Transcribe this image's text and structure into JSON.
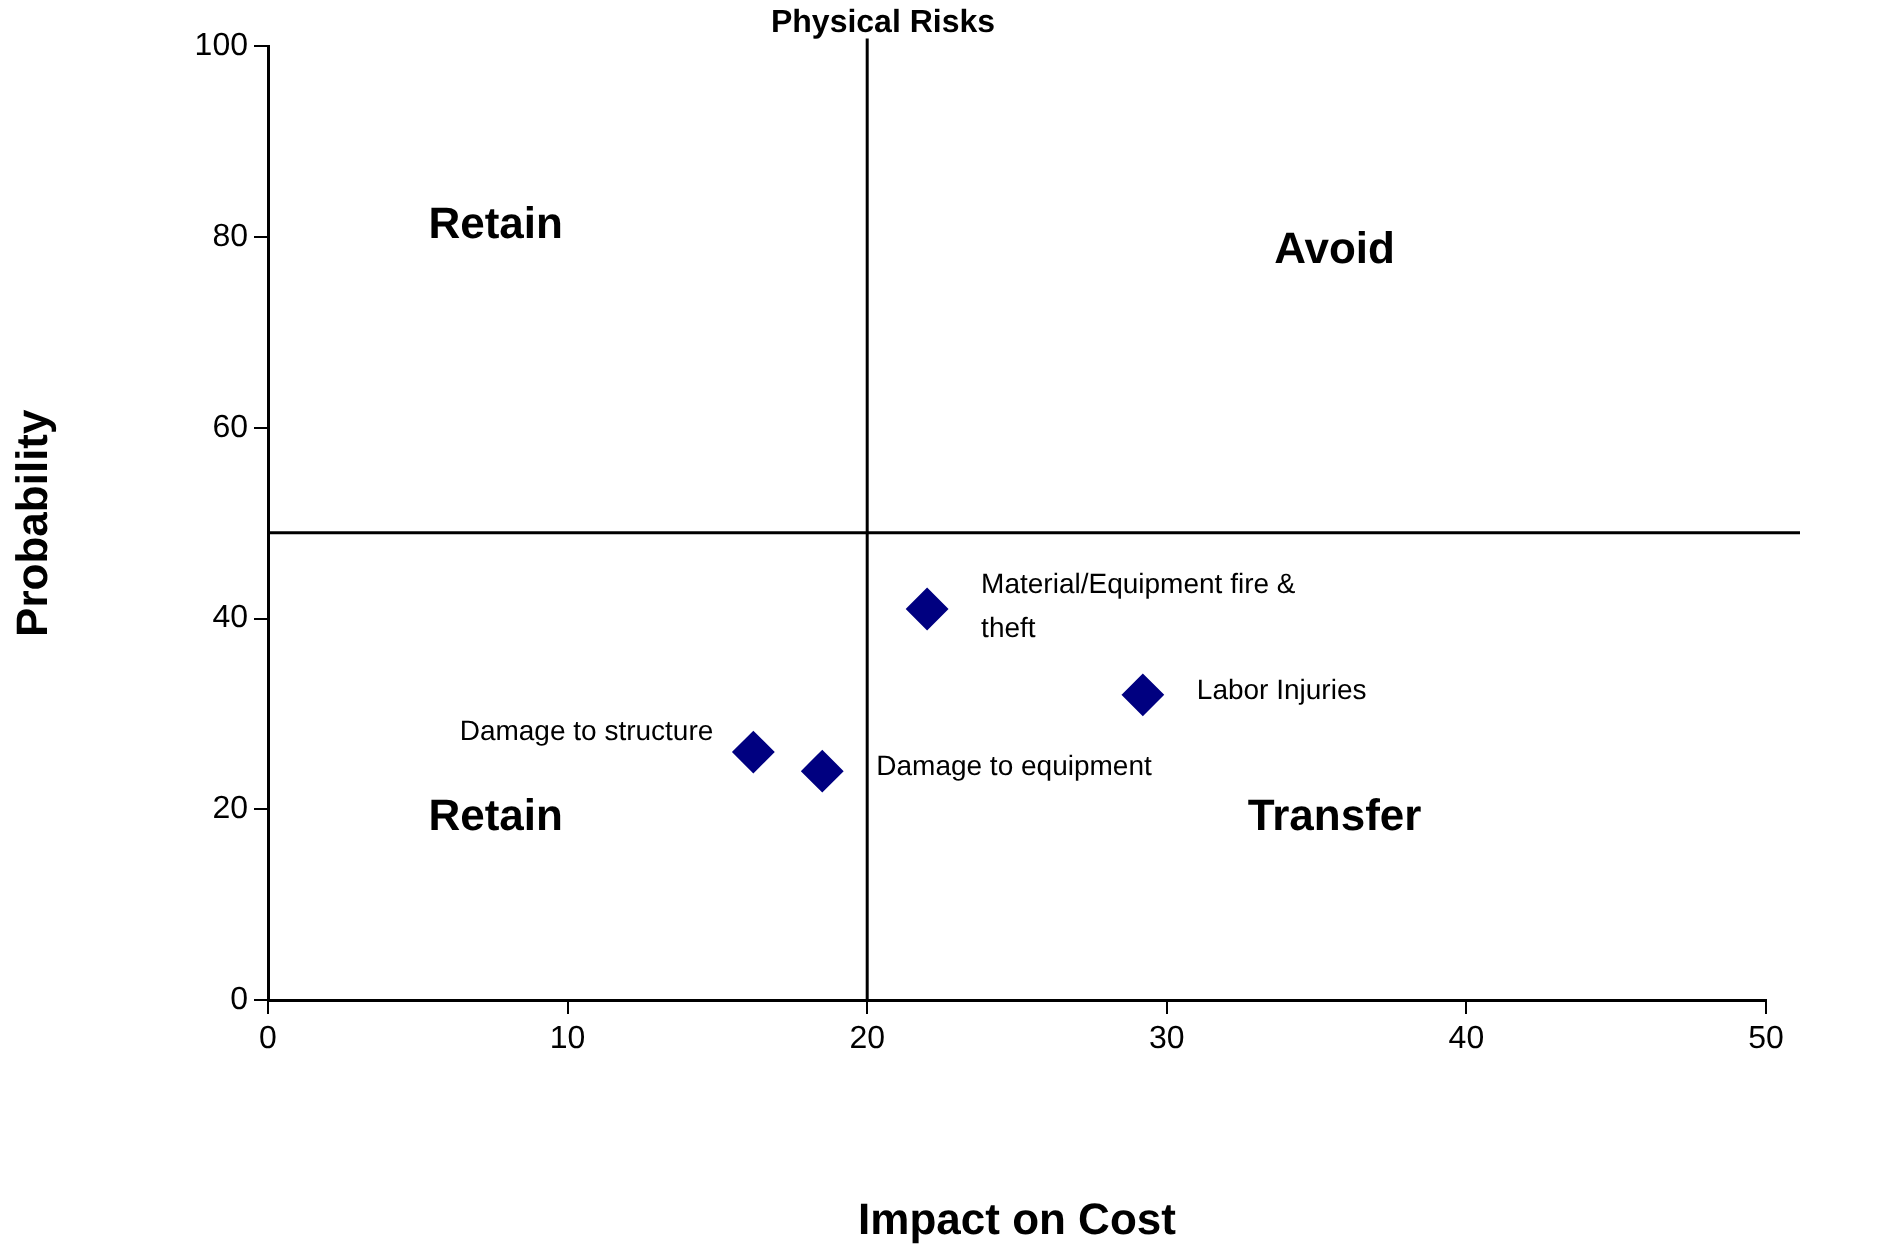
{
  "chart_data": {
    "type": "scatter",
    "title": "Physical Risks",
    "xlabel": "Impact on Cost",
    "ylabel": "Probability",
    "xlim": [
      0,
      50
    ],
    "xticks": [
      0,
      10,
      20,
      30,
      40,
      50
    ],
    "ylim": [
      0,
      100
    ],
    "yticks": [
      0,
      20,
      40,
      60,
      80,
      100
    ],
    "grid": false,
    "legend": false,
    "marker": "diamond",
    "series": [
      {
        "name": "Damage to structure",
        "color": "#000080",
        "x": [
          16.2
        ],
        "values": [
          26
        ]
      },
      {
        "name": "Damage to equipment",
        "color": "#000080",
        "x": [
          18.5
        ],
        "values": [
          24
        ]
      },
      {
        "name": "Material/Equipment fire & theft",
        "color": "#000080",
        "x": [
          22
        ],
        "values": [
          41
        ]
      },
      {
        "name": "Labor Injuries",
        "color": "#000080",
        "x": [
          29.2
        ],
        "values": [
          32
        ]
      }
    ],
    "ref_lines": [
      {
        "axis": "x",
        "value": 20,
        "color": "#000000"
      },
      {
        "axis": "y",
        "value": 49,
        "color": "#000000"
      }
    ],
    "annotations": [
      "Retain",
      "Avoid",
      "Retain",
      "Transfer"
    ]
  }
}
